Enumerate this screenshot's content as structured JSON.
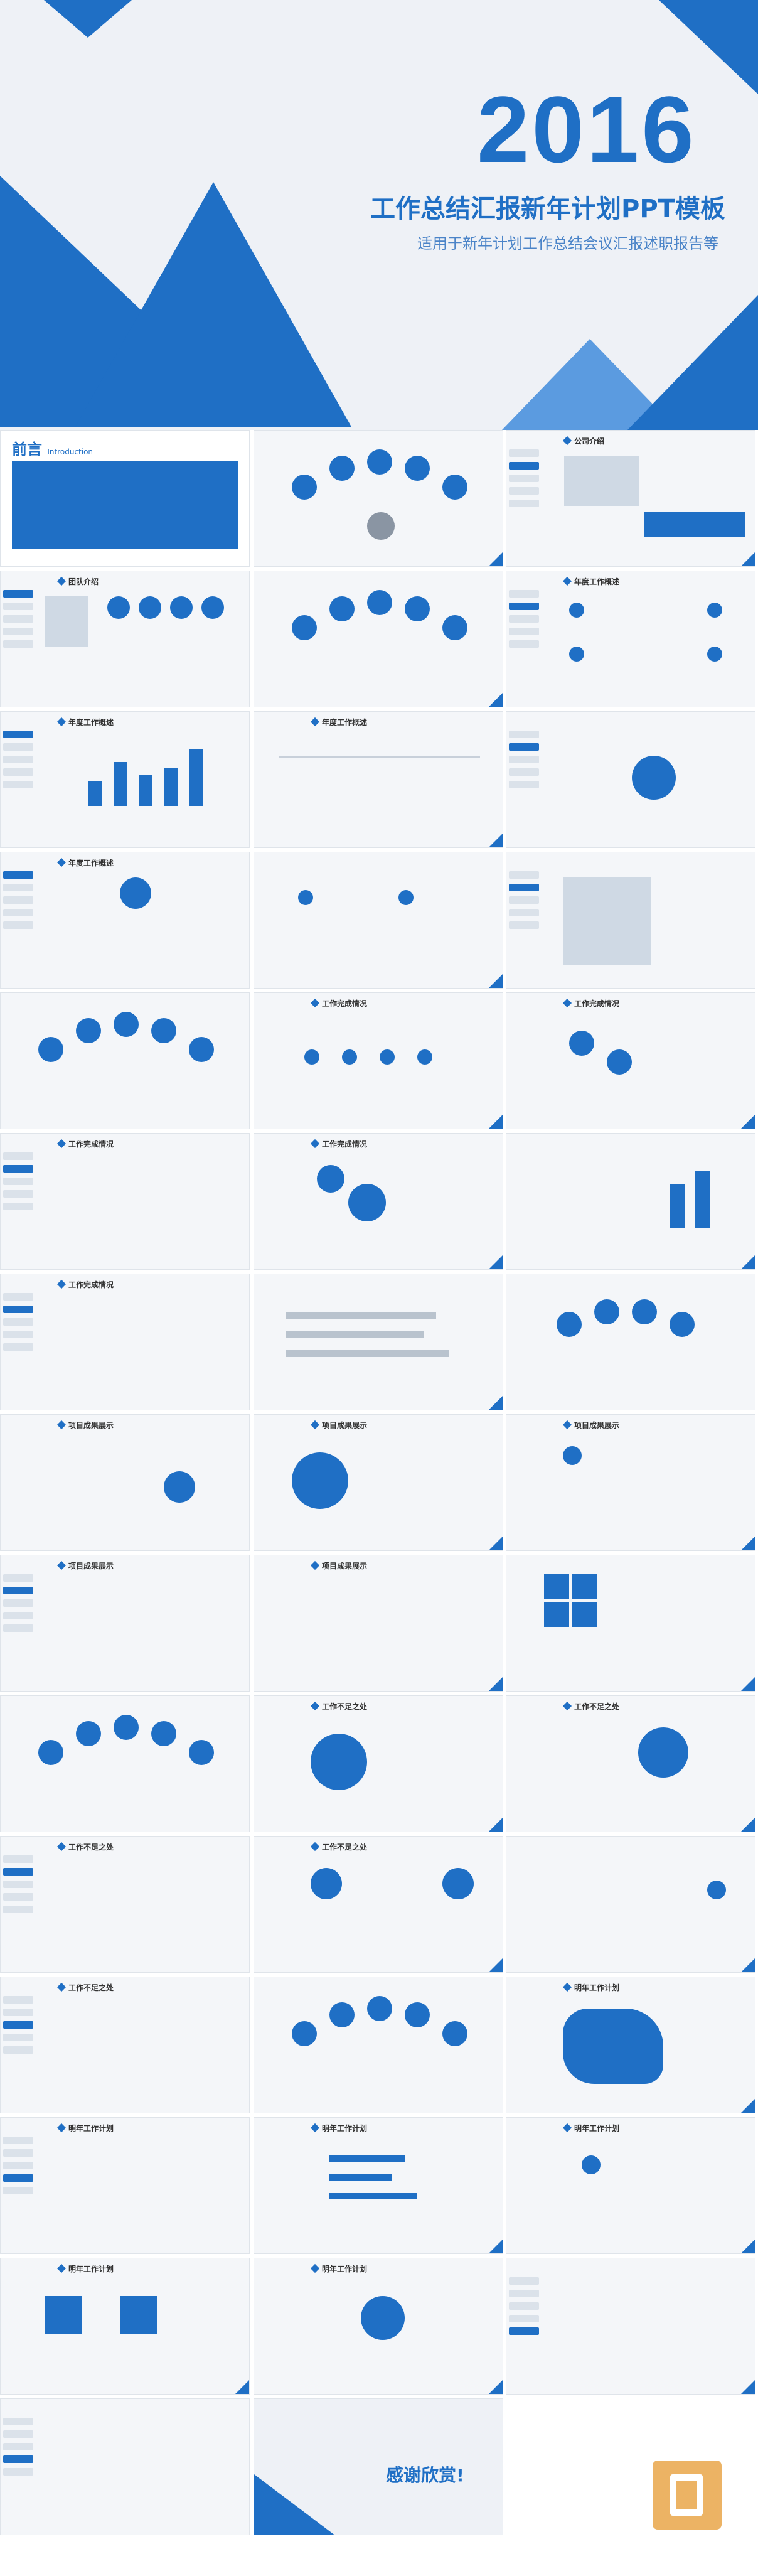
{
  "hero": {
    "year": "2016",
    "title": "工作总结汇报新年计划PPT模板",
    "subtitle": "适用于新年计划工作总结会议汇报述职报告等"
  },
  "intro": {
    "heading": "前言",
    "heading_en": "Introduction"
  },
  "slide_titles": [
    "团队介绍",
    "公司介绍",
    "年度工作概述",
    "年度工作概述",
    "年度工作概述",
    "年度工作概述",
    "工作完成情况",
    "工作完成情况",
    "工作完成情况",
    "工作完成情况",
    "工作完成情况",
    "项目成果展示",
    "项目成果展示",
    "项目成果展示",
    "项目成果展示",
    "项目成果展示",
    "工作不足之处",
    "工作不足之处",
    "工作不足之处",
    "工作不足之处",
    "工作不足之处",
    "明年工作计划",
    "明年工作计划",
    "明年工作计划",
    "明年工作计划",
    "明年工作计划",
    "明年工作计划"
  ],
  "thanks": "感谢欣赏!"
}
